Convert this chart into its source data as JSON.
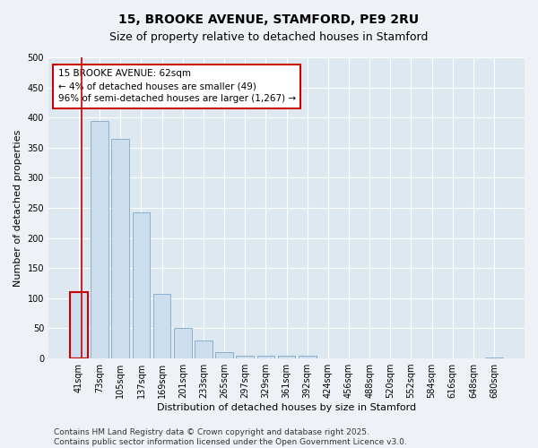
{
  "title_line1": "15, BROOKE AVENUE, STAMFORD, PE9 2RU",
  "title_line2": "Size of property relative to detached houses in Stamford",
  "xlabel": "Distribution of detached houses by size in Stamford",
  "ylabel": "Number of detached properties",
  "categories": [
    "41sqm",
    "73sqm",
    "105sqm",
    "137sqm",
    "169sqm",
    "201sqm",
    "233sqm",
    "265sqm",
    "297sqm",
    "329sqm",
    "361sqm",
    "392sqm",
    "424sqm",
    "456sqm",
    "488sqm",
    "520sqm",
    "552sqm",
    "584sqm",
    "616sqm",
    "648sqm",
    "680sqm"
  ],
  "values": [
    110,
    395,
    365,
    243,
    107,
    50,
    30,
    10,
    5,
    5,
    5,
    5,
    0,
    0,
    0,
    0,
    0,
    0,
    0,
    0,
    2
  ],
  "bar_color": "#ccdded",
  "bar_edge_color": "#8ab0cc",
  "highlight_edge_color": "#cc0000",
  "vline_color": "#cc0000",
  "annotation_title": "15 BROOKE AVENUE: 62sqm",
  "annotation_line1": "← 4% of detached houses are smaller (49)",
  "annotation_line2": "96% of semi-detached houses are larger (1,267) →",
  "annotation_box_color": "#cc0000",
  "ylim": [
    0,
    500
  ],
  "yticks": [
    0,
    50,
    100,
    150,
    200,
    250,
    300,
    350,
    400,
    450,
    500
  ],
  "background_color": "#eef2f7",
  "plot_bg_color": "#dde8f0",
  "grid_color": "#ffffff",
  "footer_line1": "Contains HM Land Registry data © Crown copyright and database right 2025.",
  "footer_line2": "Contains public sector information licensed under the Open Government Licence v3.0.",
  "title_fontsize": 10,
  "subtitle_fontsize": 9,
  "xlabel_fontsize": 8,
  "ylabel_fontsize": 8,
  "tick_fontsize": 7,
  "annotation_fontsize": 7.5,
  "footer_fontsize": 6.5
}
